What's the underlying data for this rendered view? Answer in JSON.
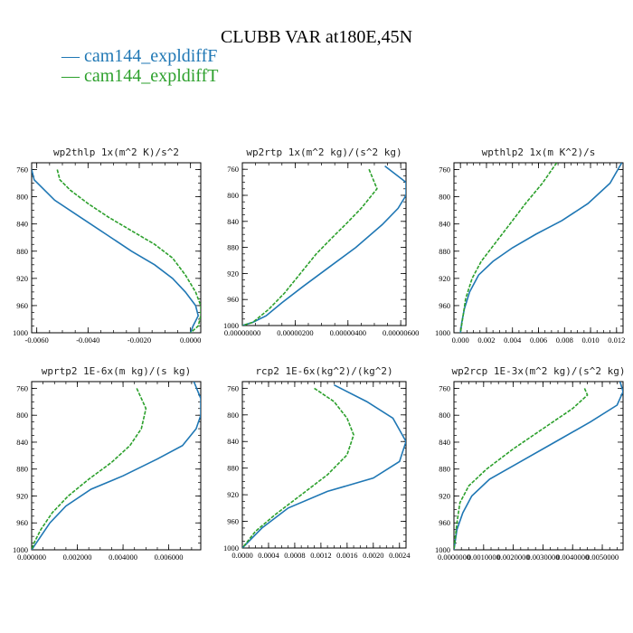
{
  "title": "CLUBB VAR at180E,45N",
  "legend": [
    {
      "label": "cam144_expldiffF",
      "color": "#1f77b4"
    },
    {
      "label": "cam144_expldiffT",
      "color": "#2ca02c"
    }
  ],
  "chart_data": [
    {
      "type": "line",
      "title": "wp2thlp  1x(m^2 K)/s^2",
      "ylim": [
        1000,
        750
      ],
      "yticks": [
        760,
        800,
        840,
        880,
        920,
        960,
        1000
      ],
      "xlim": [
        -0.0062,
        0.0004
      ],
      "xticks": [
        -0.006,
        -0.004,
        -0.002,
        0.0
      ],
      "xtick_labels": [
        "-0.0060",
        "-0.0040",
        "-0.0020",
        "0.0000"
      ],
      "series": [
        {
          "name": "cam144_expldiffF",
          "x": [
            -0.0062,
            -0.0061,
            -0.0053,
            -0.0043,
            -0.0033,
            -0.0023,
            -0.0014,
            -0.0007,
            -0.0002,
            0.0002,
            0.0003,
            0.0001,
            0.0
          ],
          "y": [
            760,
            775,
            805,
            830,
            855,
            880,
            900,
            920,
            940,
            960,
            975,
            990,
            1000
          ]
        },
        {
          "name": "cam144_expldiffT",
          "x": [
            -0.0052,
            -0.0051,
            -0.0047,
            -0.004,
            -0.0032,
            -0.0023,
            -0.0014,
            -0.0007,
            -0.0002,
            0.0002,
            0.0004,
            0.0004,
            0.0003,
            0.0
          ],
          "y": [
            760,
            775,
            790,
            810,
            830,
            850,
            870,
            890,
            915,
            940,
            960,
            975,
            990,
            1000
          ]
        }
      ]
    },
    {
      "type": "line",
      "title": "wp2rtp  1x(m^2 kg)/(s^2 kg)",
      "ylim": [
        1000,
        750
      ],
      "yticks": [
        760,
        800,
        840,
        880,
        920,
        960,
        1000
      ],
      "xlim": [
        0.0,
        6.2e-06
      ],
      "xticks": [
        0.0,
        2e-06,
        4e-06,
        6e-06
      ],
      "xtick_labels": [
        "0.00000000",
        "0.00000200",
        "0.00000400",
        "0.00000600"
      ],
      "series": [
        {
          "name": "cam144_expldiffF",
          "x": [
            5.4e-06,
            6.2e-06,
            6.2e-06,
            5.9e-06,
            5.3e-06,
            4.3e-06,
            3.3e-06,
            2.3e-06,
            1.5e-06,
            9e-07,
            4e-07,
            0.0
          ],
          "y": [
            755,
            780,
            800,
            820,
            845,
            880,
            910,
            940,
            965,
            985,
            995,
            1000
          ]
        },
        {
          "name": "cam144_expldiffT",
          "x": [
            4.8e-06,
            5.1e-06,
            4.5e-06,
            3.9e-06,
            3.4e-06,
            2.8e-06,
            2.2e-06,
            1.6e-06,
            1e-06,
            4e-07,
            0.0
          ],
          "y": [
            760,
            790,
            820,
            845,
            865,
            890,
            920,
            950,
            975,
            995,
            1000
          ]
        }
      ]
    },
    {
      "type": "line",
      "title": "wpthlp2  1x(m K^2)/s",
      "ylim": [
        1000,
        750
      ],
      "yticks": [
        760,
        800,
        840,
        880,
        920,
        960,
        1000
      ],
      "xlim": [
        -0.0005,
        0.0125
      ],
      "xticks": [
        0.0,
        0.002,
        0.004,
        0.006,
        0.008,
        0.01,
        0.012
      ],
      "xtick_labels": [
        "0.000",
        "0.002",
        "0.004",
        "0.006",
        "0.008",
        "0.010",
        "0.012"
      ],
      "series": [
        {
          "name": "cam144_expldiffF",
          "x": [
            0.0124,
            0.0115,
            0.0098,
            0.0078,
            0.0058,
            0.004,
            0.0025,
            0.0014,
            0.0007,
            0.0003,
            0.0001,
            0.0
          ],
          "y": [
            750,
            780,
            810,
            835,
            855,
            875,
            895,
            915,
            940,
            965,
            985,
            1000
          ]
        },
        {
          "name": "cam144_expldiffT",
          "x": [
            0.0074,
            0.0063,
            0.005,
            0.0038,
            0.0026,
            0.0016,
            0.0009,
            0.0004,
            0.0002,
            0.0
          ],
          "y": [
            750,
            780,
            810,
            840,
            870,
            895,
            920,
            950,
            975,
            1000
          ]
        }
      ]
    },
    {
      "type": "line",
      "title": "wprtp2  1E-6x(m kg)/(s kg)",
      "ylim": [
        1000,
        750
      ],
      "yticks": [
        760,
        800,
        840,
        880,
        920,
        960,
        1000
      ],
      "xlim": [
        0.0,
        0.0074
      ],
      "xticks": [
        0.0,
        0.002,
        0.004,
        0.006
      ],
      "xtick_labels": [
        "0.000000",
        "0.002000",
        "0.004000",
        "0.006000"
      ],
      "series": [
        {
          "name": "cam144_expldiffF",
          "x": [
            0.0071,
            0.0074,
            0.0074,
            0.0072,
            0.0066,
            0.0055,
            0.004,
            0.0026,
            0.0015,
            0.0008,
            0.0003,
            0.0
          ],
          "y": [
            750,
            775,
            800,
            820,
            845,
            865,
            890,
            910,
            935,
            960,
            985,
            1000
          ]
        },
        {
          "name": "cam144_expldiffT",
          "x": [
            0.0046,
            0.005,
            0.0048,
            0.0043,
            0.0035,
            0.0025,
            0.0016,
            0.0009,
            0.0004,
            0.0001,
            0.0
          ],
          "y": [
            760,
            790,
            820,
            845,
            870,
            895,
            920,
            945,
            970,
            990,
            1000
          ]
        }
      ]
    },
    {
      "type": "line",
      "title": "rcp2  1E-6x(kg^2)/(kg^2)",
      "ylim": [
        1000,
        750
      ],
      "yticks": [
        760,
        800,
        840,
        880,
        920,
        960,
        1000
      ],
      "xlim": [
        0.0,
        0.0025
      ],
      "xticks": [
        0.0,
        0.0004,
        0.0008,
        0.0012,
        0.0016,
        0.002,
        0.0024
      ],
      "xtick_labels": [
        "0.0000",
        "0.0004",
        "0.0008",
        "0.0012",
        "0.0016",
        "0.0020",
        "0.0024"
      ],
      "series": [
        {
          "name": "cam144_expldiffF",
          "x": [
            0.0014,
            0.0019,
            0.0023,
            0.0025,
            0.0024,
            0.002,
            0.0013,
            0.0007,
            0.0003,
            0.0
          ],
          "y": [
            755,
            780,
            805,
            840,
            870,
            895,
            915,
            940,
            970,
            1000
          ]
        },
        {
          "name": "cam144_expldiffT",
          "x": [
            0.0011,
            0.0014,
            0.0016,
            0.0017,
            0.0016,
            0.0013,
            0.0009,
            0.0005,
            0.0002,
            0.0
          ],
          "y": [
            760,
            780,
            805,
            830,
            860,
            890,
            920,
            950,
            975,
            1000
          ]
        }
      ]
    },
    {
      "type": "line",
      "title": "wp2rcp  1E-3x(m^2 kg)/(s^2 kg)",
      "ylim": [
        1000,
        750
      ],
      "yticks": [
        760,
        800,
        840,
        880,
        920,
        960,
        1000
      ],
      "xlim": [
        0.0,
        0.0057
      ],
      "xticks": [
        0.0,
        0.001,
        0.002,
        0.003,
        0.004,
        0.005
      ],
      "xtick_labels": [
        "0.0000000",
        "0.0010000",
        "0.0020000",
        "0.0030000",
        "0.0040000",
        "0.0050000"
      ],
      "series": [
        {
          "name": "cam144_expldiffF",
          "x": [
            0.0056,
            0.0057,
            0.0055,
            0.0046,
            0.0034,
            0.0022,
            0.0012,
            0.0006,
            0.0003,
            0.0001,
            0.0
          ],
          "y": [
            750,
            765,
            785,
            810,
            840,
            870,
            895,
            920,
            945,
            970,
            1000
          ]
        },
        {
          "name": "cam144_expldiffT",
          "x": [
            0.0044,
            0.0045,
            0.004,
            0.003,
            0.002,
            0.0011,
            0.0005,
            0.0002,
            0.0001,
            0.0
          ],
          "y": [
            760,
            770,
            790,
            820,
            850,
            880,
            905,
            930,
            960,
            1000
          ]
        }
      ]
    }
  ]
}
